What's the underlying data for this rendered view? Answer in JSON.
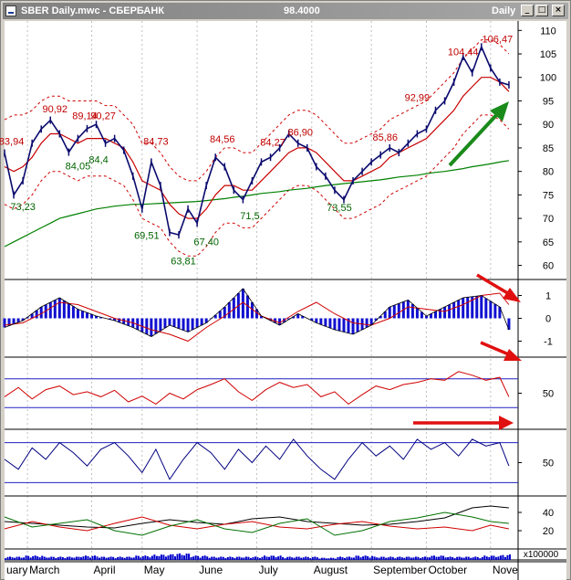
{
  "window": {
    "title": "SBER Daily.mwc - СБЕРБАНК",
    "price": "98.4000",
    "period": "Daily",
    "buttons": {
      "minimize": "_",
      "maximize": "□",
      "close": "×"
    }
  },
  "colors": {
    "background": "#ffffff",
    "price": "#0a0a6e",
    "ma_short": "#c80000",
    "ma_long": "#008000",
    "envelope": "#d00000",
    "label_high": "#c00000",
    "label_low": "#006400",
    "histogram": "#1010d0",
    "indicator_red": "#d00000",
    "indicator_blue": "#000080",
    "level_line": "#2020c0",
    "arrow_green": "#1a8a1a",
    "arrow_red": "#e01010",
    "volume": "#0000cc"
  },
  "chart_data": [
    {
      "panel": "price",
      "type": "line",
      "series_style": "candlestick-like price with moving averages and envelope",
      "ylim": [
        57,
        112
      ],
      "yticks": [
        "110",
        "105",
        "100",
        "95",
        "90",
        "85",
        "80",
        "75",
        "70",
        "65",
        "60"
      ],
      "ytick_values": [
        110,
        105,
        100,
        95,
        90,
        85,
        80,
        75,
        70,
        65,
        60
      ],
      "xlim": [
        0,
        112
      ],
      "months": [
        {
          "label": "uary",
          "x": 0
        },
        {
          "label": "March",
          "x": 5
        },
        {
          "label": "April",
          "x": 19
        },
        {
          "label": "May",
          "x": 30
        },
        {
          "label": "June",
          "x": 42
        },
        {
          "label": "July",
          "x": 55
        },
        {
          "label": "August",
          "x": 67
        },
        {
          "label": "September",
          "x": 80
        },
        {
          "label": "October",
          "x": 92
        },
        {
          "label": "Nove",
          "x": 106
        }
      ],
      "price_x": [
        0,
        2,
        4,
        6,
        8,
        10,
        12,
        14,
        16,
        18,
        20,
        22,
        24,
        26,
        28,
        30,
        32,
        34,
        36,
        38,
        40,
        42,
        44,
        46,
        48,
        50,
        52,
        54,
        56,
        58,
        60,
        62,
        64,
        66,
        68,
        70,
        72,
        74,
        76,
        78,
        80,
        82,
        84,
        86,
        88,
        90,
        92,
        94,
        96,
        98,
        100,
        102,
        104,
        106,
        108,
        110
      ],
      "price_y": [
        83.9,
        75,
        78,
        86,
        89,
        90.9,
        88,
        84.1,
        87,
        89.1,
        90,
        86,
        87,
        84.5,
        79,
        72,
        82,
        77,
        67,
        66.5,
        72,
        69,
        77,
        83,
        81,
        76,
        74,
        78,
        82,
        83,
        85,
        88,
        86,
        85,
        81,
        79,
        76,
        74,
        78,
        80,
        82,
        83.5,
        85,
        84,
        86,
        88,
        89,
        93,
        95,
        99,
        104.4,
        101,
        106.5,
        102,
        99,
        98.4
      ],
      "ma_short_y": [
        81,
        80,
        81,
        83,
        86,
        88,
        88,
        87,
        86,
        87,
        87,
        87,
        86,
        85,
        82,
        78,
        77,
        76,
        73,
        71,
        70,
        70,
        72,
        75,
        77,
        77,
        76,
        76,
        78,
        80,
        82,
        84,
        85,
        85,
        84,
        82,
        80,
        78,
        78,
        79,
        80,
        81,
        83,
        84,
        85,
        86,
        87,
        89,
        91,
        93,
        96,
        98,
        100,
        100,
        99,
        97
      ],
      "ma_long_y": [
        64,
        65,
        66,
        67,
        68,
        69,
        70,
        70.5,
        71,
        71.5,
        72,
        72.3,
        72.6,
        72.8,
        73,
        73,
        73.1,
        73.2,
        73.3,
        73.4,
        73.5,
        73.6,
        73.8,
        74,
        74.2,
        74.5,
        74.7,
        75,
        75.3,
        75.5,
        75.7,
        76,
        76.2,
        76.4,
        76.7,
        77,
        77.2,
        77.4,
        77.6,
        77.8,
        78,
        78.2,
        78.5,
        78.8,
        79,
        79.2,
        79.5,
        79.8,
        80,
        80.3,
        80.6,
        81,
        81.3,
        81.6,
        82,
        82.3
      ],
      "env_upper_y": [
        91,
        92,
        92,
        93,
        95,
        96,
        96,
        95,
        95,
        95,
        95,
        94,
        94,
        92,
        90,
        86,
        86,
        84,
        81,
        79,
        78,
        78,
        80,
        83,
        85,
        85,
        84,
        84,
        86,
        88,
        90,
        92,
        93,
        93,
        92,
        90,
        88,
        86,
        86,
        87,
        88,
        89,
        91,
        92,
        93,
        94,
        95,
        97,
        99,
        101,
        104,
        106,
        108,
        108,
        107,
        105
      ],
      "env_lower_y": [
        73,
        72,
        73,
        75,
        78,
        80,
        80,
        79,
        78,
        79,
        79,
        79,
        78,
        77,
        74,
        70,
        69,
        68,
        65,
        63,
        62,
        62,
        64,
        67,
        69,
        69,
        68,
        68,
        70,
        72,
        74,
        76,
        77,
        77,
        76,
        74,
        72,
        70,
        70,
        71,
        72,
        73,
        75,
        76,
        77,
        78,
        79,
        81,
        83,
        85,
        88,
        90,
        92,
        92,
        91,
        89
      ],
      "labels": [
        {
          "text": "83,94",
          "x": 1.5,
          "y": 85.7,
          "kind": "high"
        },
        {
          "text": "90,92",
          "x": 11,
          "y": 92.6,
          "kind": "high"
        },
        {
          "text": "89,14",
          "x": 17.5,
          "y": 91.1,
          "kind": "high"
        },
        {
          "text": "90,27",
          "x": 21.5,
          "y": 91.1,
          "kind": "high"
        },
        {
          "text": "84,73",
          "x": 33,
          "y": 85.7,
          "kind": "high"
        },
        {
          "text": "84,56",
          "x": 47.5,
          "y": 86.2,
          "kind": "high"
        },
        {
          "text": "84,27",
          "x": 58.5,
          "y": 85.5,
          "kind": "high"
        },
        {
          "text": "86,90",
          "x": 64.5,
          "y": 87.6,
          "kind": "high"
        },
        {
          "text": "85,86",
          "x": 83,
          "y": 86.5,
          "kind": "high"
        },
        {
          "text": "92,99",
          "x": 90,
          "y": 95,
          "kind": "high"
        },
        {
          "text": "104,44",
          "x": 100,
          "y": 104.7,
          "kind": "high"
        },
        {
          "text": "106,47",
          "x": 107.5,
          "y": 107.4,
          "kind": "high"
        },
        {
          "text": "84,05",
          "x": 16,
          "y": 80.4,
          "kind": "low"
        },
        {
          "text": "84,4",
          "x": 20.5,
          "y": 81.8,
          "kind": "low"
        },
        {
          "text": "73,23",
          "x": 4,
          "y": 71.8,
          "kind": "low"
        },
        {
          "text": "69,51",
          "x": 31,
          "y": 65.6,
          "kind": "low"
        },
        {
          "text": "67,40",
          "x": 44,
          "y": 64.3,
          "kind": "low"
        },
        {
          "text": "63,81",
          "x": 39,
          "y": 60.2,
          "kind": "low"
        },
        {
          "text": "71,5",
          "x": 53.5,
          "y": 69.8,
          "kind": "low"
        },
        {
          "text": "73,55",
          "x": 73,
          "y": 71.6,
          "kind": "low"
        }
      ]
    },
    {
      "panel": "oscillator",
      "type": "bar",
      "ylim": [
        -1.7,
        1.7
      ],
      "yticks": [
        "1",
        "0",
        "-1"
      ],
      "ytick_values": [
        1,
        0,
        -1
      ],
      "x": [
        0,
        4,
        8,
        12,
        16,
        20,
        24,
        28,
        32,
        36,
        40,
        44,
        48,
        52,
        56,
        60,
        64,
        68,
        72,
        76,
        80,
        84,
        88,
        92,
        96,
        100,
        104,
        108,
        110
      ],
      "values": [
        -0.4,
        -0.1,
        0.5,
        0.9,
        0.4,
        0.1,
        -0.1,
        -0.4,
        -0.8,
        -0.3,
        -0.6,
        -0.2,
        0.5,
        1.3,
        0.1,
        -0.3,
        0.2,
        -0.2,
        -0.5,
        -0.7,
        -0.3,
        0.5,
        0.8,
        0.1,
        0.5,
        0.9,
        1.0,
        0.5,
        -0.5
      ],
      "signal_red": [
        -0.3,
        -0.2,
        0.2,
        0.7,
        0.6,
        0.3,
        0,
        -0.2,
        -0.5,
        -0.7,
        -1.0,
        -0.4,
        0.1,
        0.7,
        0.1,
        -0.2,
        0.3,
        0.7,
        0.2,
        -0.2,
        -0.3,
        0,
        0.5,
        0.4,
        0.3,
        0.6,
        1.0,
        1.1,
        0.6
      ]
    },
    {
      "panel": "red-oscillator",
      "type": "line",
      "ylim": [
        0,
        100
      ],
      "yticks": [
        "50"
      ],
      "ytick_values": [
        50
      ],
      "levels": [
        70,
        30
      ],
      "x": [
        0,
        3,
        6,
        9,
        12,
        15,
        18,
        21,
        24,
        27,
        30,
        33,
        36,
        39,
        42,
        45,
        48,
        51,
        54,
        57,
        60,
        63,
        66,
        69,
        72,
        75,
        78,
        81,
        84,
        87,
        90,
        93,
        96,
        99,
        102,
        105,
        108,
        110
      ],
      "values": [
        45,
        58,
        42,
        55,
        60,
        48,
        52,
        45,
        54,
        38,
        46,
        35,
        50,
        42,
        55,
        62,
        70,
        52,
        40,
        55,
        65,
        58,
        62,
        45,
        52,
        35,
        48,
        60,
        55,
        62,
        65,
        70,
        68,
        80,
        75,
        68,
        72,
        45
      ]
    },
    {
      "panel": "blue-oscillator",
      "type": "line",
      "ylim": [
        0,
        100
      ],
      "yticks": [
        "50"
      ],
      "ytick_values": [
        50
      ],
      "levels": [
        80,
        20
      ],
      "x": [
        0,
        3,
        6,
        9,
        12,
        15,
        18,
        21,
        24,
        27,
        30,
        33,
        36,
        39,
        42,
        45,
        48,
        51,
        54,
        57,
        60,
        63,
        66,
        69,
        72,
        75,
        78,
        81,
        84,
        87,
        90,
        93,
        96,
        99,
        102,
        105,
        108,
        110
      ],
      "values": [
        55,
        40,
        72,
        55,
        80,
        65,
        45,
        70,
        80,
        60,
        35,
        70,
        25,
        55,
        80,
        65,
        40,
        70,
        50,
        75,
        55,
        85,
        60,
        40,
        25,
        55,
        80,
        60,
        75,
        55,
        85,
        70,
        80,
        60,
        85,
        75,
        80,
        45
      ]
    },
    {
      "panel": "triple-line",
      "type": "line",
      "ylim": [
        0,
        58
      ],
      "yticks": [
        "40",
        "20"
      ],
      "ytick_values": [
        40,
        20
      ],
      "x": [
        0,
        6,
        12,
        18,
        24,
        30,
        36,
        42,
        48,
        54,
        60,
        66,
        72,
        78,
        84,
        90,
        96,
        102,
        106,
        110
      ],
      "series": [
        {
          "color": "black",
          "values": [
            30,
            28,
            26,
            24,
            23,
            28,
            32,
            29,
            27,
            33,
            35,
            30,
            28,
            26,
            27,
            30,
            34,
            45,
            47,
            45
          ]
        },
        {
          "color": "red",
          "values": [
            22,
            30,
            24,
            20,
            28,
            35,
            26,
            22,
            27,
            30,
            24,
            22,
            27,
            30,
            25,
            22,
            24,
            20,
            26,
            22
          ]
        },
        {
          "color": "green",
          "values": [
            35,
            24,
            28,
            32,
            20,
            15,
            25,
            32,
            22,
            18,
            28,
            33,
            15,
            20,
            30,
            34,
            40,
            35,
            30,
            28
          ]
        }
      ]
    },
    {
      "panel": "volume",
      "type": "bar",
      "ylabel": "x100000",
      "ylim": [
        0,
        10
      ],
      "x": [
        0,
        4,
        8,
        12,
        16,
        20,
        24,
        28,
        32,
        36,
        40,
        44,
        48,
        52,
        56,
        60,
        64,
        68,
        72,
        76,
        80,
        84,
        88,
        92,
        96,
        100,
        104,
        108,
        110
      ],
      "values": [
        3,
        4,
        3,
        3,
        4,
        3,
        3,
        4,
        5,
        6,
        4,
        3,
        3,
        3,
        4,
        3,
        3,
        2,
        3,
        4,
        3,
        3,
        3,
        4,
        3,
        3,
        4,
        5,
        4
      ]
    }
  ]
}
